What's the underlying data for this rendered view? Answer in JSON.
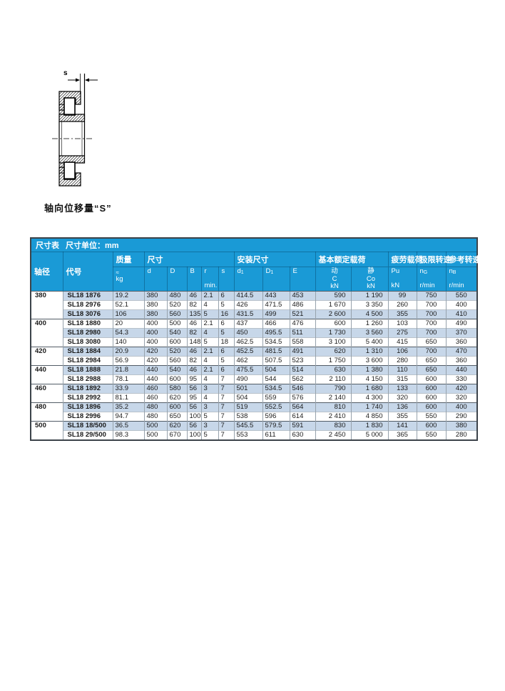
{
  "figure": {
    "dim_label": "s",
    "caption": "轴向位移量“S”"
  },
  "table": {
    "title_left": "尺寸表",
    "title_right": "尺寸单位：mm",
    "group_headers": {
      "shaft": "轴径",
      "code": "代号",
      "mass": "质量",
      "dims": "尺寸",
      "mount": "安装尺寸",
      "rating": "基本额定载荷",
      "fatigue": "疲劳载荷",
      "limit": "极限转速",
      "ref": "参考转速"
    },
    "sub_headers": {
      "mass_approx": "≈",
      "mass_unit": "kg",
      "d": "d",
      "D": "D",
      "B": "B",
      "r": "r",
      "r_min": "min.",
      "s": "s",
      "d1_base": "d",
      "d1_sub": "1",
      "D1_base": "D",
      "D1_sub": "1",
      "E": "E",
      "dyn": "动",
      "dyn_sym": "C",
      "dyn_unit": "kN",
      "stat": "静",
      "stat_sym": "Co",
      "stat_unit": "kN",
      "pu": "Pu",
      "pu_unit": "kN",
      "ng_base": "n",
      "ng_sub": "G",
      "ng_unit": "r/min",
      "nb_base": "n",
      "nb_sub": "B",
      "nb_unit": "r/min"
    },
    "groups": [
      {
        "shaft": "380",
        "rows": [
          {
            "code": "SL18 1876",
            "values": [
              "19.2",
              "380",
              "480",
              "46",
              "2.1",
              "6",
              "414.5",
              "443",
              "453",
              "590",
              "1 190",
              "99",
              "750",
              "550"
            ]
          },
          {
            "code": "SL18 2976",
            "values": [
              "52.1",
              "380",
              "520",
              "82",
              "4",
              "5",
              "426",
              "471.5",
              "486",
              "1 670",
              "3 350",
              "260",
              "700",
              "400"
            ]
          },
          {
            "code": "SL18 3076",
            "values": [
              "106",
              "380",
              "560",
              "135",
              "5",
              "16",
              "431.5",
              "499",
              "521",
              "2 600",
              "4 500",
              "355",
              "700",
              "410"
            ]
          }
        ]
      },
      {
        "shaft": "400",
        "rows": [
          {
            "code": "SL18 1880",
            "values": [
              "20",
              "400",
              "500",
              "46",
              "2.1",
              "6",
              "437",
              "466",
              "476",
              "600",
              "1 260",
              "103",
              "700",
              "490"
            ]
          },
          {
            "code": "SL18 2980",
            "values": [
              "54.3",
              "400",
              "540",
              "82",
              "4",
              "5",
              "450",
              "495.5",
              "511",
              "1 730",
              "3 560",
              "275",
              "700",
              "370"
            ]
          },
          {
            "code": "SL18 3080",
            "values": [
              "140",
              "400",
              "600",
              "148",
              "5",
              "18",
              "462.5",
              "534.5",
              "558",
              "3 100",
              "5 400",
              "415",
              "650",
              "360"
            ]
          }
        ]
      },
      {
        "shaft": "420",
        "rows": [
          {
            "code": "SL18 1884",
            "values": [
              "20.9",
              "420",
              "520",
              "46",
              "2.1",
              "6",
              "452.5",
              "481.5",
              "491",
              "620",
              "1 310",
              "106",
              "700",
              "470"
            ]
          },
          {
            "code": "SL18 2984",
            "values": [
              "56.9",
              "420",
              "560",
              "82",
              "4",
              "5",
              "462",
              "507.5",
              "523",
              "1 750",
              "3 600",
              "280",
              "650",
              "360"
            ]
          }
        ]
      },
      {
        "shaft": "440",
        "rows": [
          {
            "code": "SL18 1888",
            "values": [
              "21.8",
              "440",
              "540",
              "46",
              "2.1",
              "6",
              "475.5",
              "504",
              "514",
              "630",
              "1 380",
              "110",
              "650",
              "440"
            ]
          },
          {
            "code": "SL18 2988",
            "values": [
              "78.1",
              "440",
              "600",
              "95",
              "4",
              "7",
              "490",
              "544",
              "562",
              "2 110",
              "4 150",
              "315",
              "600",
              "330"
            ]
          }
        ]
      },
      {
        "shaft": "460",
        "rows": [
          {
            "code": "SL18 1892",
            "values": [
              "33.9",
              "460",
              "580",
              "56",
              "3",
              "7",
              "501",
              "534.5",
              "546",
              "790",
              "1 680",
              "133",
              "600",
              "420"
            ]
          },
          {
            "code": "SL18 2992",
            "values": [
              "81.1",
              "460",
              "620",
              "95",
              "4",
              "7",
              "504",
              "559",
              "576",
              "2 140",
              "4 300",
              "320",
              "600",
              "320"
            ]
          }
        ]
      },
      {
        "shaft": "480",
        "rows": [
          {
            "code": "SL18 1896",
            "values": [
              "35.2",
              "480",
              "600",
              "56",
              "3",
              "7",
              "519",
              "552.5",
              "564",
              "810",
              "1 740",
              "136",
              "600",
              "400"
            ]
          },
          {
            "code": "SL18 2996",
            "values": [
              "94.7",
              "480",
              "650",
              "100",
              "5",
              "7",
              "538",
              "596",
              "614",
              "2 410",
              "4 850",
              "355",
              "550",
              "290"
            ]
          }
        ]
      },
      {
        "shaft": "500",
        "rows": [
          {
            "code": "SL18 18/500",
            "values": [
              "36.5",
              "500",
              "620",
              "56",
              "3",
              "7",
              "545.5",
              "579.5",
              "591",
              "830",
              "1 830",
              "141",
              "600",
              "380"
            ]
          },
          {
            "code": "SL18 29/500",
            "values": [
              "98.3",
              "500",
              "670",
              "100",
              "5",
              "7",
              "553",
              "611",
              "630",
              "2 450",
              "5 000",
              "365",
              "550",
              "280"
            ]
          }
        ]
      }
    ]
  },
  "colors": {
    "header_blue": "#1a9ad6",
    "row_shade": "#c7d7e9"
  }
}
